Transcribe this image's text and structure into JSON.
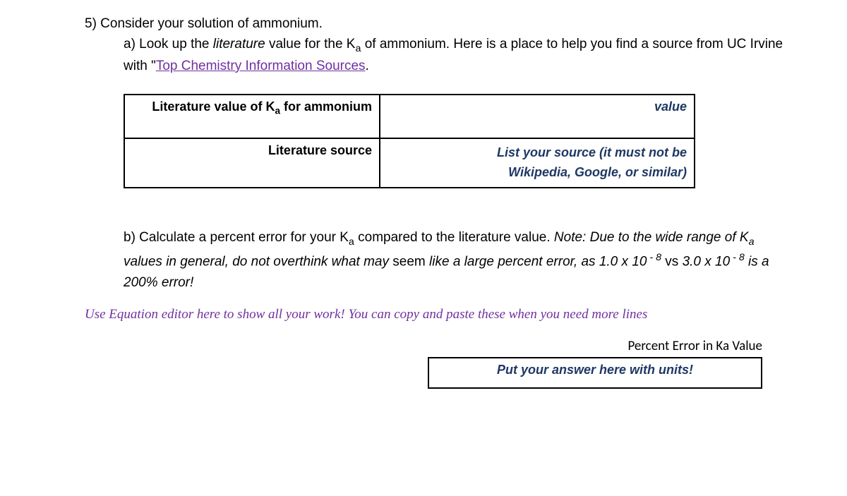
{
  "q5": {
    "intro": "5) Consider your solution of ammonium.",
    "part_a_prefix": "a) Look up the ",
    "literature_word": "literature",
    "part_a_mid1": " value for the K",
    "part_a_mid2": " of ammonium. Here is a place to help you find a source from UC Irvine with \"",
    "link_text": "Top Chemistry Information Sources",
    "part_a_end": ".",
    "table": {
      "row1_label_pre": "Literature value of K",
      "row1_label_post": " for ammonium",
      "row1_value": "value",
      "row2_label": "Literature source",
      "row2_value_line1": "List your source (it must not be",
      "row2_value_line2": " Wikipedia, Google, or similar)"
    },
    "part_b_prefix": "b) Calculate a percent error for your K",
    "part_b_mid": " compared to the literature value. ",
    "part_b_note_pre": "Note: Due to the wide range of K",
    "part_b_note_mid": " values in general, do not overthink what may ",
    "seem_word": "seem",
    "part_b_note_tail_pre": " like a large percent error, as 1.0 x 10",
    "exp1": " - 8",
    "vs_text": " vs 3.0 x 10",
    "exp2": " - 8",
    "part_b_note_end": " is a 200% error!",
    "eq_note": "Use Equation editor here to show all your work! You can copy and paste these when you need more lines",
    "percent_label": "Percent Error in Ka Value",
    "answer_placeholder": "Put your answer here with units!"
  },
  "style": {
    "link_color": "#7030a0",
    "italic_color": "#1f3864",
    "body_font": "Verdana",
    "serif_font": "Georgia"
  }
}
